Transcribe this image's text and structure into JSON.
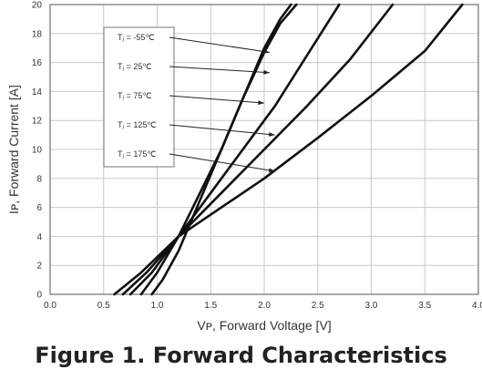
{
  "caption": "Figure 1. Forward Characteristics",
  "chart_data": {
    "type": "line",
    "title": "",
    "xlabel": "Vᴘ, Forward Voltage [V]",
    "ylabel": "Iᴘ, Forward Current [A]",
    "xlim": [
      0,
      4.0
    ],
    "ylim": [
      0,
      20
    ],
    "x_ticks": [
      "0.0",
      "0.5",
      "1.0",
      "1.5",
      "2.0",
      "2.5",
      "3.0",
      "3.5",
      "4.0"
    ],
    "y_ticks": [
      "0",
      "2",
      "4",
      "6",
      "8",
      "10",
      "12",
      "14",
      "16",
      "18",
      "20"
    ],
    "grid": true,
    "legend_position": "top-left",
    "series": [
      {
        "name": "Tⱼ = -55℃",
        "x": [
          0.95,
          1.05,
          1.2,
          1.4,
          1.6,
          1.8,
          2.0,
          2.15,
          2.3
        ],
        "y": [
          0,
          1,
          3,
          6.5,
          10,
          13.5,
          16.7,
          18.7,
          20
        ]
      },
      {
        "name": "Tⱼ = 25℃",
        "x": [
          0.85,
          1.0,
          1.2,
          1.4,
          1.6,
          1.8,
          2.0,
          2.15,
          2.25
        ],
        "y": [
          0,
          1.5,
          4,
          7,
          10,
          13.5,
          17,
          19,
          20
        ]
      },
      {
        "name": "Tⱼ = 75℃",
        "x": [
          0.75,
          0.95,
          1.2,
          1.5,
          1.8,
          2.1,
          2.4,
          2.7
        ],
        "y": [
          0,
          1.5,
          4,
          7,
          10,
          13,
          16.5,
          20
        ]
      },
      {
        "name": "Tⱼ = 125℃",
        "x": [
          0.68,
          0.9,
          1.2,
          1.6,
          2.0,
          2.4,
          2.8,
          3.2
        ],
        "y": [
          0,
          1.5,
          4,
          7,
          10,
          13,
          16.2,
          20
        ]
      },
      {
        "name": "Tⱼ = 175℃",
        "x": [
          0.6,
          0.85,
          1.2,
          1.6,
          2.0,
          2.5,
          3.0,
          3.5,
          3.85
        ],
        "y": [
          0,
          1.5,
          4,
          6,
          8,
          10.8,
          13.7,
          16.8,
          20
        ]
      }
    ]
  }
}
